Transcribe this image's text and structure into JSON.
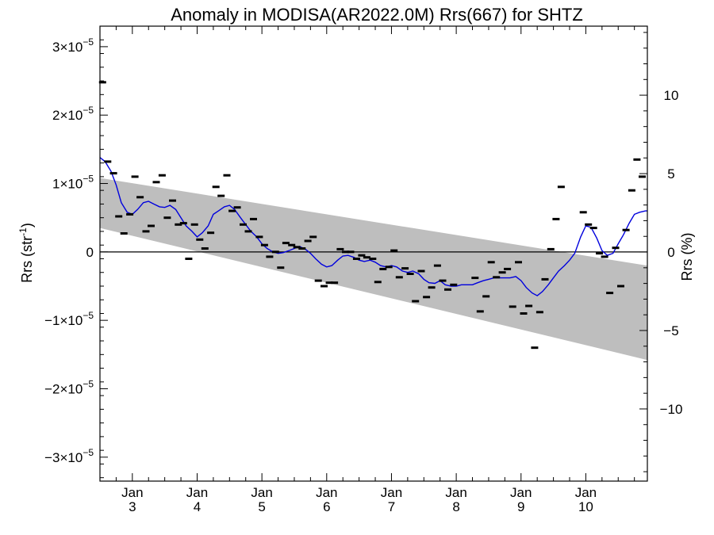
{
  "chart_data": {
    "type": "line",
    "title": "Anomaly in MODISA(AR2022.0M) Rrs(667) for SHTZ",
    "ylabel_left": "Rrs (str",
    "ylabel_left_sup": "-1",
    "ylabel_left_close": ")",
    "ylabel_right": "Rrs (%)",
    "xlim": [
      2002.5,
      2010.95
    ],
    "ylim": [
      -3.35e-05,
      3.3e-05
    ],
    "y2lim": [
      -14.6,
      14.4
    ],
    "x_ticks": [
      {
        "value": 2003,
        "line1": "Jan",
        "line2": "3"
      },
      {
        "value": 2004,
        "line1": "Jan",
        "line2": "4"
      },
      {
        "value": 2005,
        "line1": "Jan",
        "line2": "5"
      },
      {
        "value": 2006,
        "line1": "Jan",
        "line2": "6"
      },
      {
        "value": 2007,
        "line1": "Jan",
        "line2": "7"
      },
      {
        "value": 2008,
        "line1": "Jan",
        "line2": "8"
      },
      {
        "value": 2009,
        "line1": "Jan",
        "line2": "9"
      },
      {
        "value": 2010,
        "line1": "Jan",
        "line2": "10"
      }
    ],
    "y_ticks_left": [
      {
        "value": 3e-05,
        "mant": "3×10",
        "exp": "−5"
      },
      {
        "value": 2e-05,
        "mant": "2×10",
        "exp": "−5"
      },
      {
        "value": 1e-05,
        "mant": "1×10",
        "exp": "−5"
      },
      {
        "value": 0,
        "mant": "0",
        "exp": ""
      },
      {
        "value": -1e-05,
        "mant": "−1×10",
        "exp": "−5"
      },
      {
        "value": -2e-05,
        "mant": "−2×10",
        "exp": "−5"
      },
      {
        "value": -3e-05,
        "mant": "−3×10",
        "exp": "−5"
      }
    ],
    "y_ticks_right": [
      {
        "value": 10,
        "label": "10"
      },
      {
        "value": 5,
        "label": "5"
      },
      {
        "value": 0,
        "label": "0"
      },
      {
        "value": -5,
        "label": "−5"
      },
      {
        "value": -10,
        "label": "−10"
      }
    ],
    "trend_band": {
      "x": [
        2002.5,
        2010.95
      ],
      "upper": [
        1.08e-05,
        -2e-06
      ],
      "lower": [
        3.5e-06,
        -1.58e-05
      ],
      "color": "#bebebe"
    },
    "zero_line": 0,
    "series": [
      {
        "kind": "monthly_anomaly",
        "color": "#000000",
        "x": [
          2002.54,
          2002.62,
          2002.71,
          2002.79,
          2002.87,
          2002.96,
          2003.04,
          2003.12,
          2003.21,
          2003.29,
          2003.37,
          2003.46,
          2003.54,
          2003.62,
          2003.71,
          2003.79,
          2003.87,
          2003.96,
          2004.04,
          2004.12,
          2004.21,
          2004.29,
          2004.37,
          2004.46,
          2004.54,
          2004.62,
          2004.71,
          2004.79,
          2004.87,
          2004.96,
          2005.04,
          2005.12,
          2005.21,
          2005.29,
          2005.37,
          2005.46,
          2005.54,
          2005.62,
          2005.71,
          2005.79,
          2005.87,
          2005.96,
          2006.04,
          2006.12,
          2006.21,
          2006.29,
          2006.37,
          2006.46,
          2006.54,
          2006.62,
          2006.71,
          2006.79,
          2006.87,
          2006.96,
          2007.04,
          2007.12,
          2007.21,
          2007.29,
          2007.37,
          2007.46,
          2007.54,
          2007.62,
          2007.71,
          2007.79,
          2007.87,
          2007.96,
          2008.29,
          2008.37,
          2008.46,
          2008.54,
          2008.62,
          2008.71,
          2008.79,
          2008.87,
          2008.96,
          2009.04,
          2009.12,
          2009.21,
          2009.29,
          2009.37,
          2009.46,
          2009.54,
          2009.62,
          2009.96,
          2010.04,
          2010.12,
          2010.21,
          2010.29,
          2010.37,
          2010.46,
          2010.54,
          2010.62,
          2010.71,
          2010.79,
          2010.87
        ],
        "values": [
          2.48e-05,
          1.32e-05,
          1.15e-05,
          5.2e-06,
          2.7e-06,
          5.5e-06,
          1.1e-05,
          8e-06,
          3e-06,
          3.8e-06,
          1.02e-05,
          1.12e-05,
          5e-06,
          7.5e-06,
          4e-06,
          4.2e-06,
          -1e-06,
          4e-06,
          1.8e-06,
          5e-07,
          2.8e-06,
          9.5e-06,
          8.2e-06,
          1.12e-05,
          6e-06,
          6.5e-06,
          4e-06,
          3e-06,
          4.8e-06,
          2.2e-06,
          1e-06,
          -7e-07,
          0.0,
          -2.3e-06,
          1.3e-06,
          1e-06,
          7e-07,
          5e-07,
          1.6e-06,
          2.2e-06,
          -4.2e-06,
          -5e-06,
          -4.5e-06,
          -4.5e-06,
          4e-07,
          0.0,
          0.0,
          -1e-06,
          -5e-07,
          -8e-07,
          -1e-06,
          -4.4e-06,
          -2.5e-06,
          -2.2e-06,
          2e-07,
          -3.7e-06,
          -2.4e-06,
          -3.2e-06,
          -7.2e-06,
          -2.8e-06,
          -6.6e-06,
          -5.2e-06,
          -2e-06,
          -4.2e-06,
          -5.5e-06,
          -4.8e-06,
          -3.8e-06,
          -8.7e-06,
          -6.5e-06,
          -1.5e-06,
          -3.7e-06,
          -3e-06,
          -2.5e-06,
          -8e-06,
          -1.5e-06,
          -9e-06,
          -7.9e-06,
          -1.4e-05,
          -8.8e-06,
          -4e-06,
          4e-07,
          4.8e-06,
          9.5e-06,
          5.8e-06,
          4e-06,
          3.5e-06,
          -2e-07,
          -7e-07,
          -6e-06,
          6e-07,
          -5e-06,
          3.2e-06,
          9e-06,
          1.35e-05,
          1.1e-05
        ]
      },
      {
        "kind": "smoothed",
        "color": "#0000dd",
        "x": [
          2002.5,
          2002.58,
          2002.67,
          2002.75,
          2002.83,
          2002.92,
          2003.0,
          2003.08,
          2003.17,
          2003.25,
          2003.33,
          2003.42,
          2003.5,
          2003.58,
          2003.67,
          2003.75,
          2003.83,
          2003.92,
          2004.0,
          2004.08,
          2004.17,
          2004.25,
          2004.33,
          2004.42,
          2004.5,
          2004.58,
          2004.67,
          2004.75,
          2004.83,
          2004.92,
          2005.0,
          2005.08,
          2005.17,
          2005.25,
          2005.33,
          2005.42,
          2005.5,
          2005.58,
          2005.67,
          2005.75,
          2005.83,
          2005.92,
          2006.0,
          2006.08,
          2006.17,
          2006.25,
          2006.33,
          2006.42,
          2006.5,
          2006.58,
          2006.67,
          2006.75,
          2006.83,
          2006.92,
          2007.0,
          2007.08,
          2007.17,
          2007.25,
          2007.33,
          2007.42,
          2007.5,
          2007.58,
          2007.67,
          2007.75,
          2007.83,
          2007.92,
          2008.0,
          2008.08,
          2008.17,
          2008.25,
          2008.33,
          2008.42,
          2008.5,
          2008.58,
          2008.67,
          2008.75,
          2008.83,
          2008.92,
          2009.0,
          2009.08,
          2009.17,
          2009.25,
          2009.33,
          2009.42,
          2009.5,
          2009.58,
          2009.67,
          2009.75,
          2009.83,
          2009.92,
          2010.0,
          2010.08,
          2010.17,
          2010.25,
          2010.33,
          2010.42,
          2010.5,
          2010.58,
          2010.67,
          2010.75,
          2010.83,
          2010.92,
          2010.95
        ],
        "values": [
          1.38e-05,
          1.32e-05,
          1.18e-05,
          9.8e-06,
          7.2e-06,
          5.8e-06,
          5.5e-06,
          6.2e-06,
          7.2e-06,
          7.4e-06,
          7e-06,
          6.6e-06,
          6.5e-06,
          6.8e-06,
          6.2e-06,
          5e-06,
          3.8e-06,
          3e-06,
          2.2e-06,
          2.8e-06,
          3.8e-06,
          5.5e-06,
          6e-06,
          6.6e-06,
          6.8e-06,
          6.2e-06,
          5e-06,
          4e-06,
          3e-06,
          2.2e-06,
          1.2e-06,
          5e-07,
          0.0,
          -2e-07,
          -1e-07,
          2e-07,
          5e-07,
          8e-07,
          4e-07,
          -2e-07,
          -1e-06,
          -1.8e-06,
          -2.2e-06,
          -2e-06,
          -1.2e-06,
          -6e-07,
          -5e-07,
          -8e-07,
          -1.2e-06,
          -1.4e-06,
          -1.2e-06,
          -1.5e-06,
          -2e-06,
          -2.2e-06,
          -2e-06,
          -2.2e-06,
          -2.8e-06,
          -3e-06,
          -2.8e-06,
          -3.2e-06,
          -4e-06,
          -4.5e-06,
          -4.6e-06,
          -4.2e-06,
          -4.8e-06,
          -5e-06,
          -5e-06,
          -4.8e-06,
          -4.8e-06,
          -4.8e-06,
          -4.5e-06,
          -4.2e-06,
          -4e-06,
          -3.8e-06,
          -3.8e-06,
          -3.8e-06,
          -3.8e-06,
          -3.6e-06,
          -4.2e-06,
          -5.2e-06,
          -6e-06,
          -6.4e-06,
          -5.8e-06,
          -4.8e-06,
          -3.8e-06,
          -2.8e-06,
          -2e-06,
          -1.2e-06,
          -2e-07,
          2.2e-06,
          3.8e-06,
          3.6e-06,
          2e-06,
          2e-07,
          -5e-07,
          -2e-07,
          1.2e-06,
          2.5e-06,
          4.2e-06,
          5.5e-06,
          5.8e-06,
          6e-06,
          6e-06
        ]
      }
    ]
  }
}
